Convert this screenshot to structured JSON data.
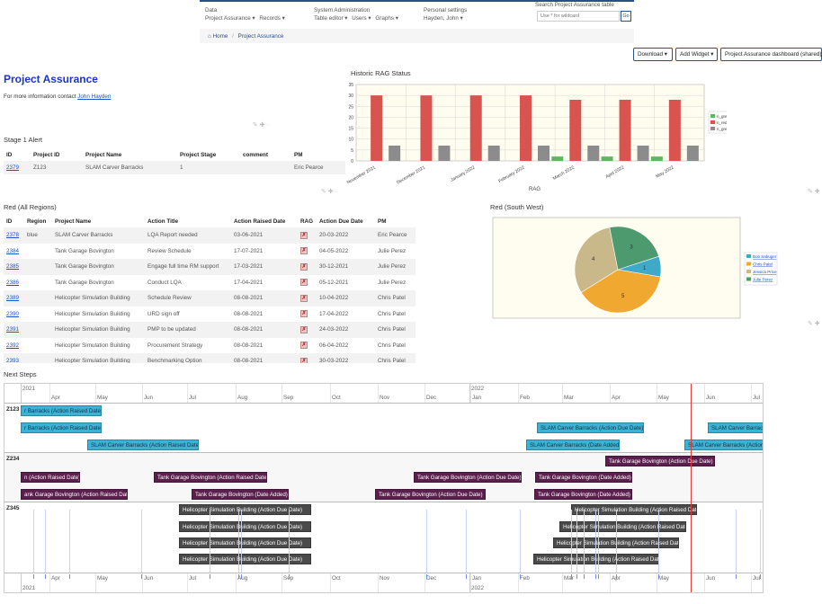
{
  "topnav": {
    "data_heading": "Data",
    "data_links": [
      "Project Assurance",
      "Records"
    ],
    "sysadmin_heading": "System Administration",
    "sysadmin_links": [
      "Table editor",
      "Users",
      "Graphs"
    ],
    "personal_heading": "Personal settings",
    "personal_user": "Hayden, John",
    "search_label": "Search Project Assurance table",
    "search_placeholder": "Use * for wildcard",
    "search_go": "Go"
  },
  "breadcrumb": {
    "home": "Home",
    "current": "Project Assurance"
  },
  "toolbar": {
    "download": "Download",
    "add_widget": "Add Widget",
    "dashboard": "Project Assurance dashboard (shared)"
  },
  "page": {
    "title": "Project Assurance",
    "info_prefix": "For more information contact",
    "contact": "John Hayden"
  },
  "stage1": {
    "title": "Stage 1 Alert",
    "headers": [
      "ID",
      "Project ID",
      "Project Name",
      "Project Stage",
      "comment",
      "PM"
    ],
    "rows": [
      [
        "2379",
        "Z123",
        "SLAM Carver Barracks",
        "1",
        "",
        "Eric Pearce"
      ]
    ]
  },
  "red_all": {
    "title": "Red (All Regions)",
    "headers": [
      "ID",
      "Region",
      "Project Name",
      "Action Title",
      "Action Raised Date",
      "RAG",
      "Action Due Date",
      "PM"
    ],
    "rows": [
      [
        "2378",
        "blue",
        "SLAM Carver Barracks",
        "LQA Report needed",
        "03-06-2021",
        "20-03-2022",
        "Eric Pearce"
      ],
      [
        "2384",
        "",
        "Tank Garage Bovington",
        "Review Schedule",
        "17-07-2021",
        "04-05-2022",
        "Julie Perez"
      ],
      [
        "2385",
        "",
        "Tank Garage Bovington",
        "Engage full time RM support",
        "17-03-2021",
        "30-12-2021",
        "Julie Perez"
      ],
      [
        "2386",
        "",
        "Tank Garage Bovington",
        "Conduct LQA",
        "17-04-2021",
        "05-12-2021",
        "Julie Perez"
      ],
      [
        "2389",
        "",
        "Helicopter Simulation Building",
        "Schedule Review",
        "08-08-2021",
        "10-04-2022",
        "Chris Patel"
      ],
      [
        "2390",
        "",
        "Helicopter Simulation Building",
        "URD sign off",
        "08-08-2021",
        "17-04-2022",
        "Chris Patel"
      ],
      [
        "2391",
        "",
        "Helicopter Simulation Building",
        "PMP to be updated",
        "08-08-2021",
        "24-03-2022",
        "Chris Patel"
      ],
      [
        "2392",
        "",
        "Helicopter Simulation Building",
        "Procurement Strategy",
        "08-08-2021",
        "06-04-2022",
        "Chris Patel"
      ],
      [
        "2393",
        "",
        "Helicopter Simulation Building",
        "Benchmarking Option",
        "08-08-2021",
        "30-03-2022",
        "Chris Patel"
      ]
    ],
    "rag_symbol": "✗"
  },
  "rag_chart": {
    "title": "Historic RAG Status",
    "chart_data": {
      "type": "bar",
      "categories": [
        "November 2021",
        "December 2021",
        "January 2022",
        "February 2022",
        "March 2022",
        "April 2022",
        "May 2022"
      ],
      "series": [
        {
          "name": "n_green",
          "values": [
            0,
            0,
            0,
            0,
            2,
            2,
            2
          ],
          "color": "#5cb85c"
        },
        {
          "name": "n_red",
          "values": [
            30,
            30,
            30,
            30,
            28,
            28,
            28
          ],
          "color": "#d9534f"
        },
        {
          "name": "n_grey",
          "values": [
            7,
            7,
            7,
            7,
            7,
            7,
            7
          ],
          "color": "#8c8c8c"
        }
      ],
      "xlabel": "RAG",
      "ylim": [
        0,
        35
      ],
      "yticks": [
        "0",
        "5",
        "10",
        "15",
        "20",
        "25",
        "30",
        "35"
      ]
    }
  },
  "pie": {
    "title": "Red (South West)",
    "chart_data": {
      "type": "pie",
      "series": [
        {
          "name": "Bob Sabuger",
          "value": 1,
          "color": "#3ea9c9",
          "label": "1"
        },
        {
          "name": "Chris Patel",
          "value": 5,
          "color": "#f0a830",
          "label": "5"
        },
        {
          "name": "Jessica Price",
          "value": 4,
          "color": "#c8b88a",
          "label": "4"
        },
        {
          "name": "Julie Perez",
          "value": 3,
          "color": "#4c9a6e",
          "label": "3"
        }
      ]
    }
  },
  "timeline": {
    "title": "Next Steps",
    "year_top_left": "2021",
    "year_top_right": "2022",
    "months": [
      "Apr",
      "May",
      "Jun",
      "Jul",
      "Aug",
      "Sep",
      "Oct",
      "Nov",
      "Dec",
      "Jan",
      "Feb",
      "Mar",
      "Apr",
      "May",
      "Jun",
      "Jul"
    ],
    "groups": [
      {
        "label": "Z123",
        "color": "#3bb3d6",
        "text": "#1a3040"
      },
      {
        "label": "Z234",
        "color": "#5b1f4e",
        "text": "#fff"
      },
      {
        "label": "Z345",
        "color": "#4a4a4a",
        "text": "#fff"
      }
    ],
    "bars": [
      {
        "g": 0,
        "text": "r Barracks (Action Raised Date)"
      },
      {
        "g": 0,
        "text": "r Barracks (Action Raised Date)"
      },
      {
        "g": 0,
        "text": "SLAM Carver Barracks (Action Raised Date)"
      },
      {
        "g": 0,
        "text": "SLAM Carver Barracks (Action Due Date)"
      },
      {
        "g": 0,
        "text": "SLAM Carver Barrac"
      },
      {
        "g": 0,
        "text": "SLAM Carver Barracks (Date Added)"
      },
      {
        "g": 0,
        "text": "SLAM Carver Barracks (Action D"
      },
      {
        "g": 1,
        "text": "Tank Garage Bovington (Action Due Date)"
      },
      {
        "g": 1,
        "text": "n (Action Raised Date)"
      },
      {
        "g": 1,
        "text": "Tank Garage Bovington (Action Raised Date)"
      },
      {
        "g": 1,
        "text": "Tank Garage Bovington (Action Due Date)"
      },
      {
        "g": 1,
        "text": "Tank Garage Bovington (Date Added)"
      },
      {
        "g": 1,
        "text": "ank Garage Bovington (Action Raised Date)"
      },
      {
        "g": 1,
        "text": "Tank Garage Bovington (Date Added)"
      },
      {
        "g": 1,
        "text": "Tank Garage Bovington (Action Due Date)"
      },
      {
        "g": 1,
        "text": "Tank Garage Bovington (Date Added)"
      },
      {
        "g": 2,
        "text": "Helicopter Simulation Building (Action Raised Date)"
      },
      {
        "g": 2,
        "text": "Helicopter Simulation Building (Action Due Date)"
      },
      {
        "g": 2,
        "text": "Helicopter Simulation Building (Action Raised Date)"
      },
      {
        "g": 2,
        "text": "Helicopter Simulation Building (Action Due Date)"
      },
      {
        "g": 2,
        "text": "Helicopter Simulation Building (Action Raised Date)"
      },
      {
        "g": 2,
        "text": "Helicopter Simulation Building (Action Due Date)"
      },
      {
        "g": 2,
        "text": "Helicopter Simulation Building (Action Raised Date)"
      },
      {
        "g": 2,
        "text": "Helicopter Simulation Building (Action Due Date)"
      }
    ]
  }
}
